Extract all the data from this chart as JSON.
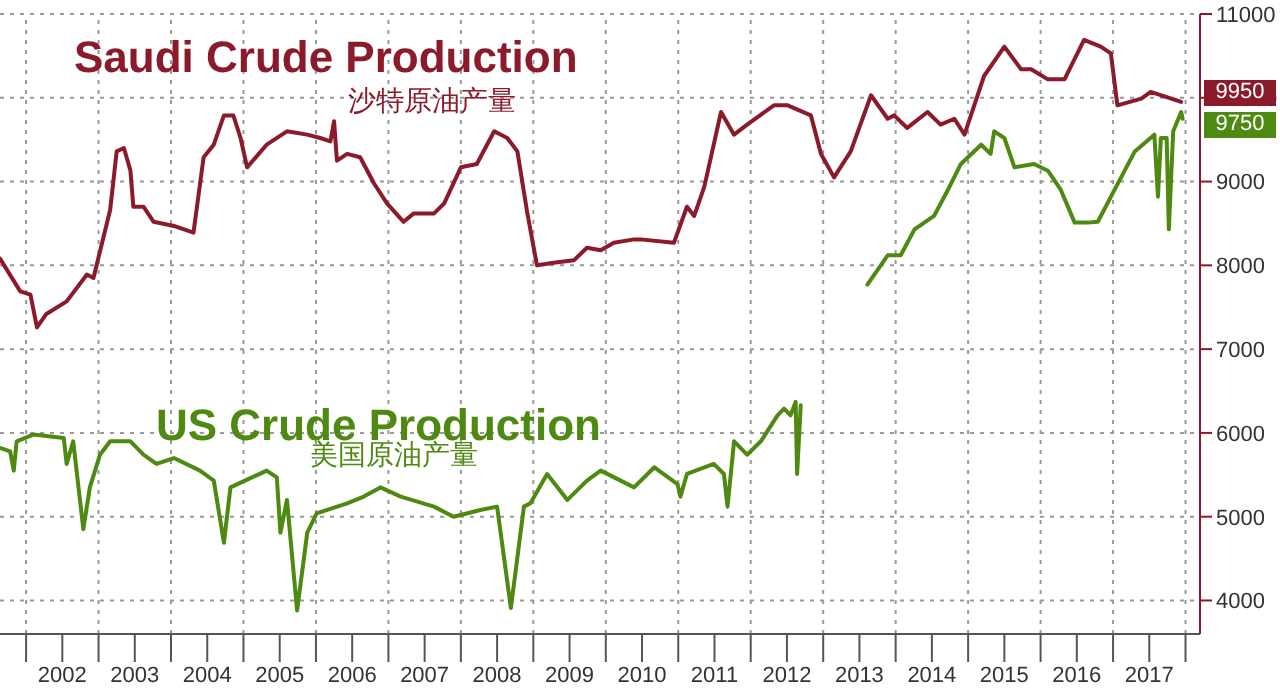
{
  "chart_data": {
    "type": "line",
    "xlim": [
      2001.64,
      2018.2
    ],
    "ylim": [
      3600,
      11000
    ],
    "xticks": [
      {
        "value": 2002,
        "label": null
      },
      {
        "value": 2002.5,
        "label": "2002"
      },
      {
        "value": 2003,
        "label": null
      },
      {
        "value": 2003.5,
        "label": "2003"
      },
      {
        "value": 2004,
        "label": null
      },
      {
        "value": 2004.5,
        "label": "2004"
      },
      {
        "value": 2005,
        "label": null
      },
      {
        "value": 2005.5,
        "label": "2005"
      },
      {
        "value": 2006,
        "label": null
      },
      {
        "value": 2006.5,
        "label": "2006"
      },
      {
        "value": 2007,
        "label": null
      },
      {
        "value": 2007.5,
        "label": "2007"
      },
      {
        "value": 2008,
        "label": null
      },
      {
        "value": 2008.5,
        "label": "2008"
      },
      {
        "value": 2009,
        "label": null
      },
      {
        "value": 2009.5,
        "label": "2009"
      },
      {
        "value": 2010,
        "label": null
      },
      {
        "value": 2010.5,
        "label": "2010"
      },
      {
        "value": 2011,
        "label": null
      },
      {
        "value": 2011.5,
        "label": "2011"
      },
      {
        "value": 2012,
        "label": null
      },
      {
        "value": 2012.5,
        "label": "2012"
      },
      {
        "value": 2013,
        "label": null
      },
      {
        "value": 2013.5,
        "label": "2013"
      },
      {
        "value": 2014,
        "label": null
      },
      {
        "value": 2014.5,
        "label": "2014"
      },
      {
        "value": 2015,
        "label": null
      },
      {
        "value": 2015.5,
        "label": "2015"
      },
      {
        "value": 2016,
        "label": null
      },
      {
        "value": 2016.5,
        "label": "2016"
      },
      {
        "value": 2017,
        "label": null
      },
      {
        "value": 2017.5,
        "label": "2017"
      },
      {
        "value": 2018,
        "label": null
      }
    ],
    "yticks": [
      4000,
      5000,
      6000,
      7000,
      8000,
      9000,
      10000,
      11000
    ],
    "grid": true,
    "legend": false,
    "marker": "none",
    "line_style": "solid",
    "annotations": [
      "沙特原油产量",
      "美国原油产量"
    ],
    "series": [
      {
        "name": "Saudi Crude Production",
        "color": "#8b1a2b",
        "x": [
          2001.64,
          2001.92,
          2002.06,
          2002.15,
          2002.28,
          2002.56,
          2002.84,
          2002.93,
          2003.16,
          2003.25,
          2003.35,
          2003.44,
          2003.48,
          2003.62,
          2003.76,
          2004.04,
          2004.31,
          2004.45,
          2004.59,
          2004.73,
          2004.86,
          2004.96,
          2005.05,
          2005.32,
          2005.6,
          2005.88,
          2006.06,
          2006.2,
          2006.25,
          2006.29,
          2006.43,
          2006.61,
          2006.8,
          2006.98,
          2007.21,
          2007.35,
          2007.63,
          2007.77,
          2008.0,
          2008.22,
          2008.46,
          2008.64,
          2008.78,
          2008.91,
          2009.05,
          2009.28,
          2009.56,
          2009.74,
          2009.93,
          2010.11,
          2010.39,
          2010.48,
          2010.94,
          2011.12,
          2011.22,
          2011.36,
          2011.59,
          2011.77,
          2011.95,
          2012.32,
          2012.51,
          2012.83,
          2012.97,
          2013.15,
          2013.38,
          2013.66,
          2013.89,
          2013.98,
          2014.16,
          2014.44,
          2014.62,
          2014.81,
          2014.95,
          2015.22,
          2015.5,
          2015.73,
          2015.87,
          2016.1,
          2016.33,
          2016.6,
          2016.83,
          2016.97,
          2017.06,
          2017.39,
          2017.52,
          2017.94
        ],
        "values": [
          8080,
          7690,
          7650,
          7260,
          7420,
          7570,
          7890,
          7850,
          8660,
          9360,
          9400,
          9130,
          8700,
          8700,
          8520,
          8470,
          8390,
          9290,
          9440,
          9790,
          9790,
          9520,
          9170,
          9440,
          9600,
          9560,
          9520,
          9480,
          9720,
          9250,
          9330,
          9290,
          8980,
          8740,
          8520,
          8620,
          8620,
          8740,
          9170,
          9210,
          9600,
          9520,
          9360,
          8660,
          8000,
          8030,
          8060,
          8210,
          8180,
          8270,
          8310,
          8310,
          8270,
          8700,
          8590,
          8940,
          9830,
          9560,
          9680,
          9910,
          9910,
          9790,
          9330,
          9050,
          9360,
          10030,
          9750,
          9790,
          9640,
          9830,
          9680,
          9750,
          9560,
          10260,
          10610,
          10340,
          10340,
          10220,
          10220,
          10690,
          10610,
          10530,
          9910,
          9990,
          10070,
          9950
        ],
        "value_labels": [
          null,
          null,
          null,
          null,
          null,
          null,
          null,
          null,
          null,
          null,
          null,
          null,
          null,
          null,
          null,
          null,
          null,
          null,
          null,
          null,
          null,
          null,
          null,
          null,
          null,
          null,
          null,
          null,
          null,
          null,
          null,
          null,
          null,
          null,
          null,
          null,
          null,
          null,
          null,
          null,
          null,
          null,
          null,
          null,
          null,
          null,
          null,
          null,
          null,
          null,
          null,
          null,
          null,
          null,
          null,
          null,
          null,
          null,
          null,
          null,
          null,
          null,
          null,
          null,
          null,
          null,
          null,
          null,
          null,
          null,
          null,
          null,
          null,
          null,
          null,
          null,
          null,
          null,
          null,
          null,
          null,
          null,
          null,
          null,
          null,
          "9950"
        ]
      },
      {
        "name": "US Crude Production",
        "color": "#4e8a12",
        "x": [
          2001.64,
          2001.78,
          2001.83,
          2001.87,
          2002.1,
          2002.52,
          2002.56,
          2002.65,
          2002.79,
          2002.88,
          2003.02,
          2003.16,
          2003.44,
          2003.62,
          2003.8,
          2004.04,
          2004.4,
          2004.59,
          2004.73,
          2004.82,
          2005.32,
          2005.46,
          2005.51,
          2005.6,
          2005.74,
          2005.88,
          2006.01,
          2006.43,
          2006.66,
          2006.89,
          2007.17,
          2007.63,
          2007.9,
          2008.27,
          2008.5,
          2008.69,
          2008.87,
          2008.96,
          2009.19,
          2009.47,
          2009.74,
          2009.93,
          2010.39,
          2010.67,
          2010.99,
          2011.03,
          2011.12,
          2011.49,
          2011.63,
          2011.68,
          2011.77,
          2011.95,
          2012.14,
          2012.37,
          2012.46,
          2012.55,
          2012.62,
          2012.64,
          2012.69,
          2013.1,
          2013.61,
          2013.89,
          2014.07,
          2014.26,
          2014.53,
          2014.72,
          2014.9,
          2015.18,
          2015.31,
          2015.36,
          2015.5,
          2015.64,
          2015.91,
          2016.1,
          2016.28,
          2016.47,
          2016.65,
          2016.79,
          2017.02,
          2017.3,
          2017.57,
          2017.62,
          2017.66,
          2017.74,
          2017.77,
          2017.83,
          2017.94,
          2017.96
        ],
        "values": [
          5820,
          5780,
          5550,
          5900,
          5980,
          5940,
          5630,
          5900,
          4850,
          5350,
          5740,
          5900,
          5900,
          5740,
          5630,
          5700,
          5550,
          5430,
          4690,
          5350,
          5550,
          5470,
          4810,
          5200,
          3880,
          4810,
          5040,
          5160,
          5240,
          5350,
          5240,
          5120,
          5000,
          5080,
          5120,
          3910,
          5120,
          5160,
          5510,
          5200,
          5430,
          5550,
          5350,
          5590,
          5390,
          5240,
          5510,
          5630,
          5510,
          5120,
          5900,
          5740,
          5900,
          6210,
          6290,
          6210,
          6370,
          5510,
          6330,
          null,
          7770,
          8120,
          8120,
          8430,
          8590,
          8900,
          9210,
          9440,
          9330,
          9600,
          9520,
          9170,
          9210,
          9130,
          8900,
          8510,
          8510,
          8520,
          8900,
          9360,
          9560,
          8820,
          9520,
          9520,
          8430,
          9600,
          9830,
          9750
        ],
        "value_labels": [
          null,
          null,
          null,
          null,
          null,
          null,
          null,
          null,
          null,
          null,
          null,
          null,
          null,
          null,
          null,
          null,
          null,
          null,
          null,
          null,
          null,
          null,
          null,
          null,
          null,
          null,
          null,
          null,
          null,
          null,
          null,
          null,
          null,
          null,
          null,
          null,
          null,
          null,
          null,
          null,
          null,
          null,
          null,
          null,
          null,
          null,
          null,
          null,
          null,
          null,
          null,
          null,
          null,
          null,
          null,
          null,
          null,
          null,
          null,
          null,
          null,
          null,
          null,
          null,
          null,
          null,
          null,
          null,
          null,
          null,
          null,
          null,
          null,
          null,
          null,
          null,
          null,
          null,
          null,
          null,
          null,
          null,
          null,
          null,
          null,
          null,
          null,
          "9750"
        ]
      }
    ]
  }
}
